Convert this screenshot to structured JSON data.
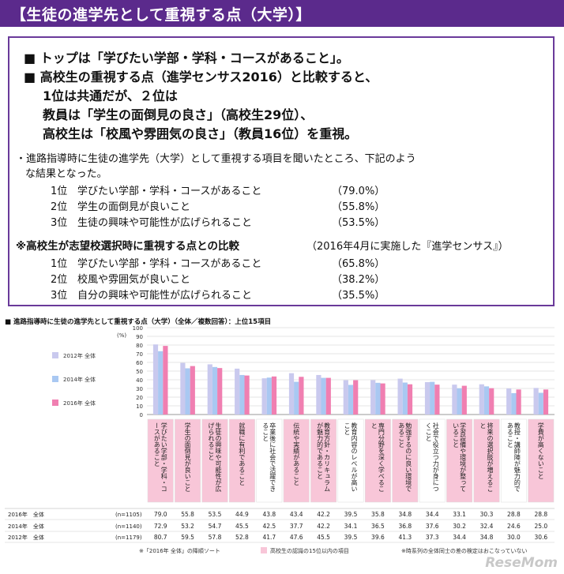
{
  "header": {
    "title": "【生徒の進学先として重視する点（大学）】"
  },
  "summary": {
    "line1": "■ トップは「学びたい学部・学科・コースがあること」。",
    "line2": "■ 高校生の重視する点（進学センサス2016）と比較すると、",
    "line3": "1位は共通だが、２位は",
    "line4": "教員は「学生の面倒見の良さ」（高校生29位）、",
    "line5": "高校生は「校風や雰囲気の良さ」（教員16位）を重視。"
  },
  "survey": {
    "intro1": "・進路指導時に生徒の進学先（大学）として重視する項目を聞いたところ、下記のよう",
    "intro2": "な結果となった。",
    "ranks": [
      {
        "rank": "1位",
        "item": "学びたい学部・学科・コースがあること",
        "pct": "（79.0%）"
      },
      {
        "rank": "2位",
        "item": "学生の面倒見が良いこと",
        "pct": "（55.8%）"
      },
      {
        "rank": "3位",
        "item": "生徒の興味や可能性が広げられること",
        "pct": "（53.5%）"
      }
    ]
  },
  "comparison": {
    "title": "※高校生が志望校選択時に重視する点との比較",
    "note": "（2016年4月に実施した『進学センサス』）",
    "ranks": [
      {
        "rank": "1位",
        "item": "学びたい学部・学科・コースがあること",
        "pct": "（65.8%）"
      },
      {
        "rank": "2位",
        "item": "校風や雰囲気が良いこと",
        "pct": "（38.2%）"
      },
      {
        "rank": "3位",
        "item": "自分の興味や可能性が広げられること",
        "pct": "（35.5%）"
      }
    ]
  },
  "colors": {
    "s2012": "#c9c9ee",
    "s2014": "#a9c8f2",
    "s2016": "#f07fb1",
    "header": "#5b2a8c",
    "highlight": "#f8c6d8"
  },
  "chart_data": {
    "type": "bar",
    "title": "■ 進路指導時に生徒の進学先として重視する点（大学）（全体／複数回答）：上位15項目",
    "ylabel": "(%)",
    "ylim": [
      0,
      100
    ],
    "yticks": [
      0,
      10,
      20,
      30,
      40,
      50,
      60,
      70,
      80,
      90,
      100
    ],
    "categories": [
      "学びたい学部・学科・コースがあること",
      "学生の面倒見が良いこと",
      "生徒の興味や可能性が広げられること",
      "就職に有利であること",
      "卒業後に社会で活躍できること",
      "伝統や実績があること",
      "教育方針・カリキュラムが魅力的であること",
      "教育内容のレベルが高いこと",
      "専門分野を深く学べること",
      "勉強するのに良い環境であること",
      "社会で役立つ力が身につくこと",
      "学習設備や環境が整っていること",
      "将来の選択肢が増えること",
      "教授・講師陣が魅力的であること",
      "学費が高くないこと"
    ],
    "highlight": [
      true,
      true,
      true,
      true,
      false,
      true,
      true,
      false,
      true,
      true,
      false,
      true,
      true,
      false,
      true
    ],
    "series": [
      {
        "name": "2012年 全体",
        "n": "(n=1179)",
        "values": [
          80.7,
          59.5,
          57.8,
          52.8,
          41.7,
          47.6,
          45.5,
          39.5,
          39.6,
          41.3,
          37.3,
          34.4,
          34.8,
          30.0,
          30.6
        ]
      },
      {
        "name": "2014年 全体",
        "n": "(n=1140)",
        "values": [
          72.9,
          53.2,
          54.7,
          45.5,
          42.5,
          37.7,
          42.2,
          34.1,
          36.5,
          36.8,
          37.6,
          30.2,
          32.4,
          24.6,
          25.0
        ]
      },
      {
        "name": "2016年 全体",
        "n": "(n=1105)",
        "values": [
          79.0,
          55.8,
          53.5,
          44.9,
          43.8,
          43.4,
          42.2,
          39.5,
          35.8,
          34.8,
          34.4,
          33.1,
          30.3,
          28.8,
          28.8
        ]
      }
    ],
    "table_rows": [
      {
        "label": "2016年　全体",
        "n": "(n=1105)",
        "series": 2
      },
      {
        "label": "2014年　全体",
        "n": "(n=1140)",
        "series": 1
      },
      {
        "label": "2012年　全体",
        "n": "(n=1179)",
        "series": 0
      }
    ],
    "footnote1": "※「2016年 全体」の降順ソート",
    "footnote2": "高校生の認識の15位以内の項目",
    "footnote3": "※時系列の全体同士の差の検定はおこなっていない"
  },
  "watermark": "ReseMom"
}
